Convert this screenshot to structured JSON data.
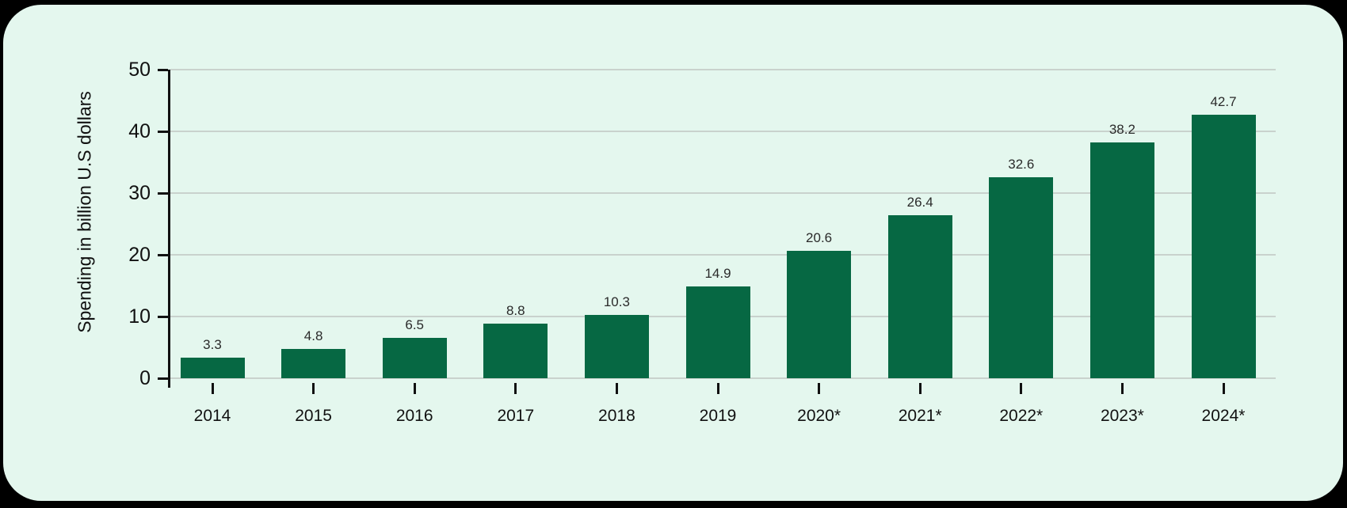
{
  "chart_data": {
    "type": "bar",
    "categories": [
      "2014",
      "2015",
      "2016",
      "2017",
      "2018",
      "2019",
      "2020*",
      "2021*",
      "2022*",
      "2023*",
      "2024*"
    ],
    "values": [
      3.3,
      4.8,
      6.5,
      8.8,
      10.3,
      14.9,
      20.6,
      26.4,
      32.6,
      38.2,
      42.7
    ],
    "title": "",
    "xlabel": "",
    "ylabel": "Spending in billion U.S dollars",
    "ylim": [
      0,
      50
    ],
    "yticks": [
      0,
      10,
      20,
      30,
      40,
      50
    ],
    "grid": true,
    "legend": false,
    "colors": {
      "bar": "#066843",
      "card_background": "#e4f7ee",
      "page_background": "#000000",
      "gridline": "#c9d2cd",
      "axis": "#111111",
      "value_label": "#2a2a2a"
    }
  }
}
